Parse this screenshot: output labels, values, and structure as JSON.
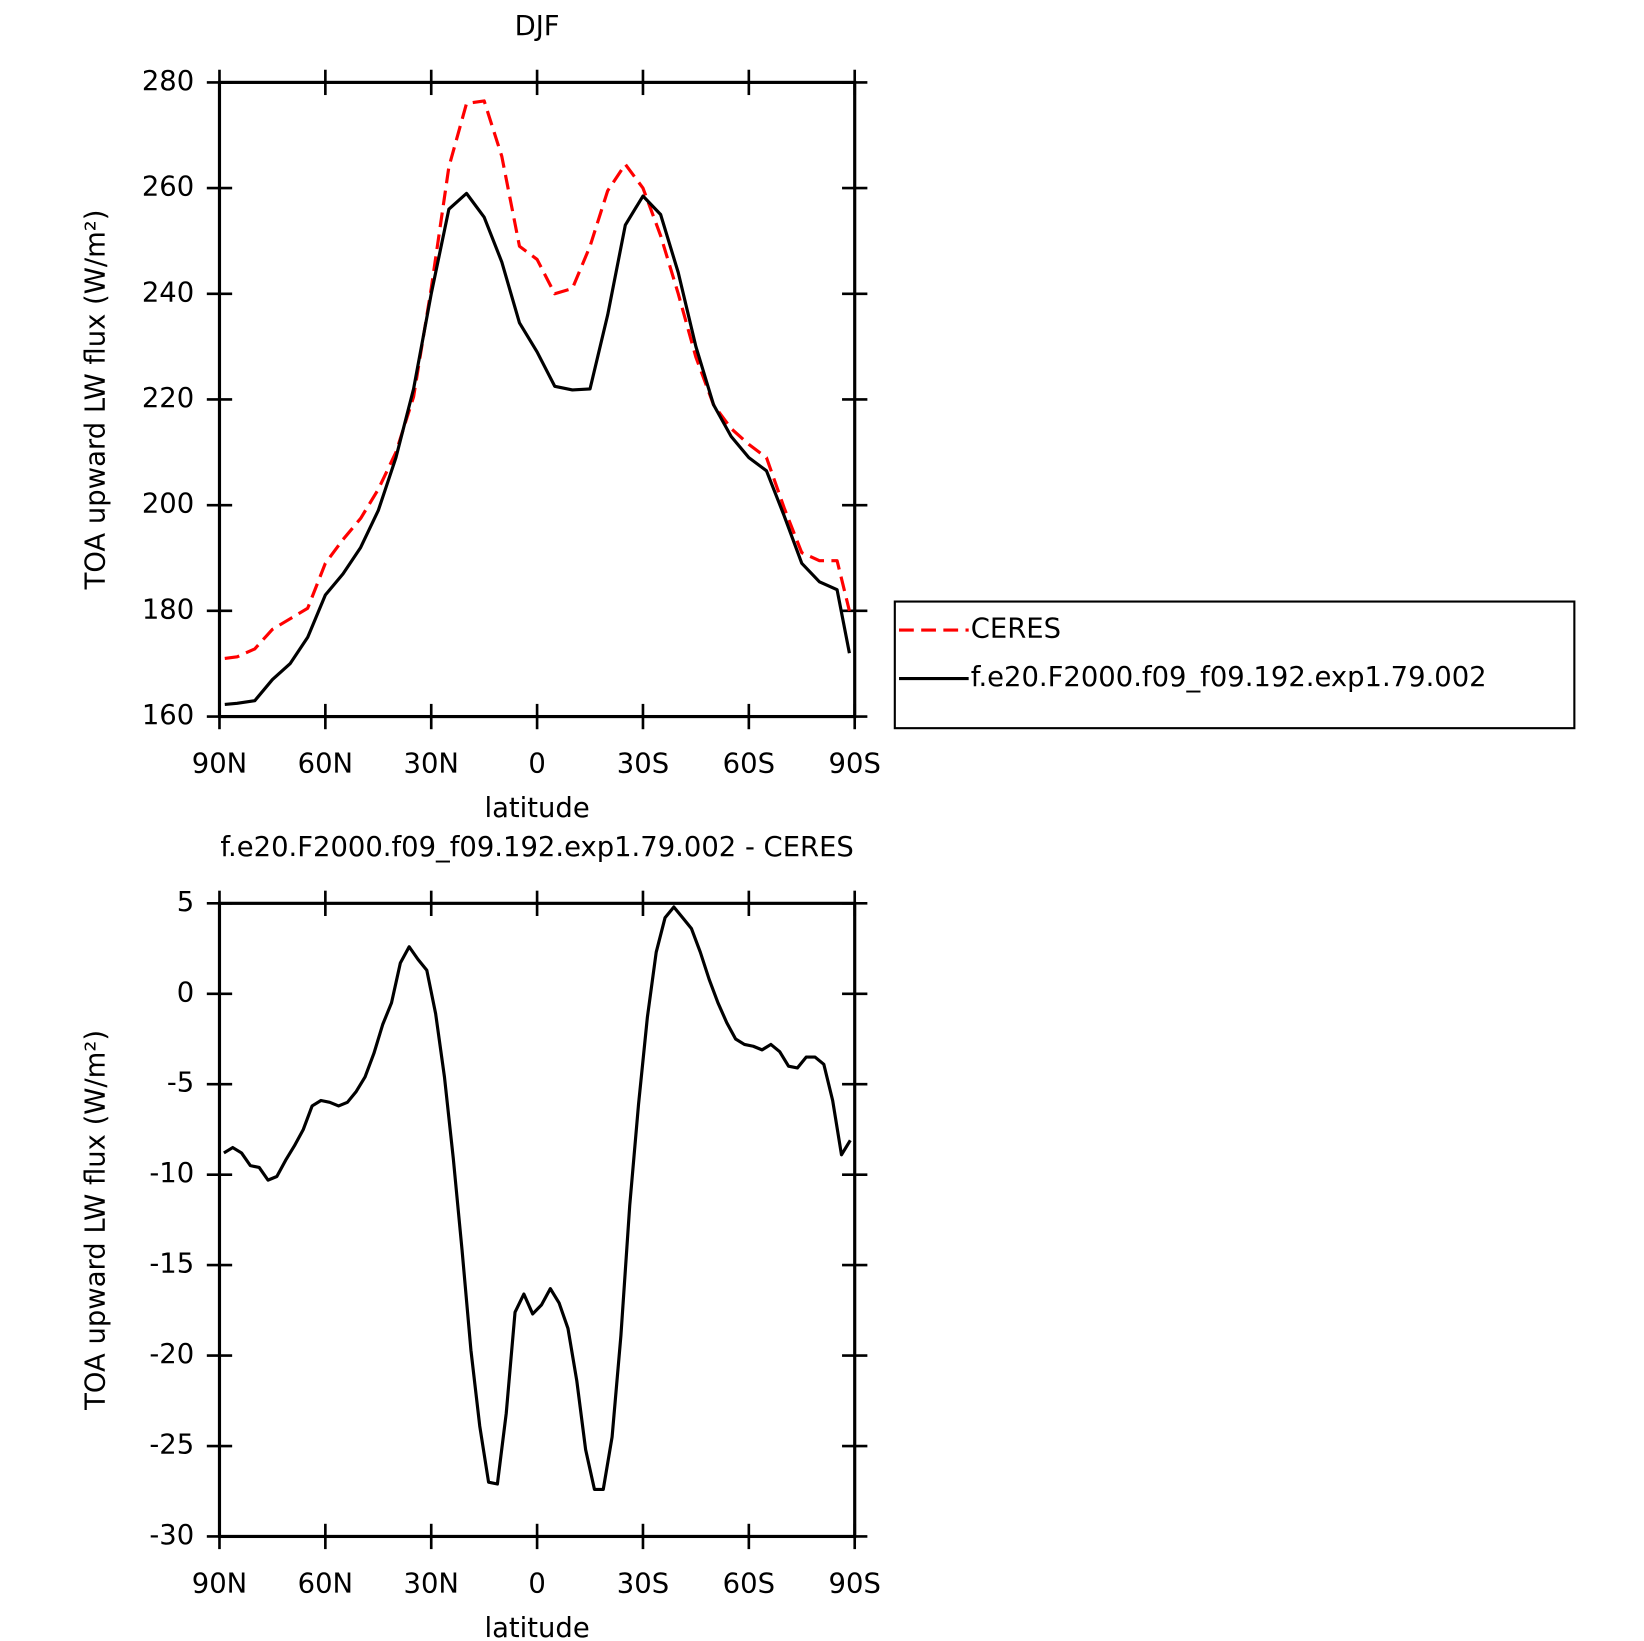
{
  "chart_data": [
    {
      "type": "line",
      "title": "DJF",
      "xlabel": "latitude",
      "ylabel": "TOA upward LW flux (W/m²)",
      "x": [
        88.5,
        85,
        80,
        75,
        70,
        65,
        60,
        55,
        50,
        45,
        40,
        35,
        30,
        25,
        20,
        15,
        10,
        5,
        0,
        -5,
        -10,
        -15,
        -20,
        -25,
        -30,
        -35,
        -40,
        -45,
        -50,
        -55,
        -60,
        -65,
        -70,
        -75,
        -80,
        -85,
        -88.5
      ],
      "xlim": [
        90,
        -90
      ],
      "xticks": [
        {
          "value": 90,
          "label": "90N"
        },
        {
          "value": 60,
          "label": "60N"
        },
        {
          "value": 30,
          "label": "30N"
        },
        0,
        {
          "value": -30,
          "label": "30S"
        },
        {
          "value": -60,
          "label": "60S"
        },
        {
          "value": -90,
          "label": "90S"
        }
      ],
      "ylim": [
        160,
        280
      ],
      "yticks": [
        160,
        180,
        200,
        220,
        240,
        260,
        280
      ],
      "legend": "right",
      "series": [
        {
          "name": "CERES",
          "color": "#ff0000",
          "linestyle": "dashed",
          "values": [
            171,
            171.3,
            172.8,
            176.5,
            178.5,
            180.5,
            189,
            193.5,
            197.5,
            203,
            210,
            220.5,
            241,
            264,
            276,
            276.5,
            266,
            249,
            246.5,
            240,
            241,
            249,
            259.5,
            264.5,
            260,
            251,
            240,
            228,
            219,
            214.5,
            211.5,
            209,
            199.5,
            191,
            189.5,
            189.5,
            180
          ]
        },
        {
          "name": "f.e20.F2000.f09_f09.192.exp1.79.002",
          "color": "#000000",
          "linestyle": "solid",
          "values": [
            162.3,
            162.5,
            163,
            167,
            170,
            175,
            183,
            187,
            192,
            199,
            209,
            222,
            240,
            256,
            259,
            254.5,
            246,
            234.5,
            229,
            222.5,
            221.8,
            222,
            236,
            253,
            258.5,
            255,
            244,
            230,
            219,
            213,
            209,
            206.5,
            198,
            189,
            185.5,
            184,
            172
          ]
        }
      ]
    },
    {
      "type": "line",
      "title": "f.e20.F2000.f09_f09.192.exp1.79.002 - CERES",
      "xlabel": "latitude",
      "ylabel": "TOA upward LW flux (W/m²)",
      "x": [
        88.75,
        86.25,
        83.75,
        81.25,
        78.75,
        76.25,
        73.75,
        71.25,
        68.75,
        66.25,
        63.75,
        61.25,
        58.75,
        56.25,
        53.75,
        51.25,
        48.75,
        46.25,
        43.75,
        41.25,
        38.75,
        36.25,
        33.75,
        31.25,
        28.75,
        26.25,
        23.75,
        21.25,
        18.75,
        16.25,
        13.75,
        11.25,
        8.75,
        6.25,
        3.75,
        1.25,
        -1.25,
        -3.75,
        -6.25,
        -8.75,
        -11.25,
        -13.75,
        -16.25,
        -18.75,
        -21.25,
        -23.75,
        -26.25,
        -28.75,
        -31.25,
        -33.75,
        -36.25,
        -38.75,
        -41.25,
        -43.75,
        -46.25,
        -48.75,
        -51.25,
        -53.75,
        -56.25,
        -58.75,
        -61.25,
        -63.75,
        -66.25,
        -68.75,
        -71.25,
        -73.75,
        -76.25,
        -78.75,
        -81.25,
        -83.75,
        -86.25,
        -88.75
      ],
      "xlim": [
        90,
        -90
      ],
      "xticks": [
        {
          "value": 90,
          "label": "90N"
        },
        {
          "value": 60,
          "label": "60N"
        },
        {
          "value": 30,
          "label": "30N"
        },
        0,
        {
          "value": -30,
          "label": "30S"
        },
        {
          "value": -60,
          "label": "60S"
        },
        {
          "value": -90,
          "label": "90S"
        }
      ],
      "ylim": [
        -30,
        5
      ],
      "yticks": [
        -30,
        -25,
        -20,
        -15,
        -10,
        -5,
        0,
        5
      ],
      "series": [
        {
          "color": "#000000",
          "linestyle": "solid",
          "values": [
            -8.8,
            -8.5,
            -8.8,
            -9.5,
            -9.6,
            -10.3,
            -10.1,
            -9.2,
            -8.4,
            -7.5,
            -6.2,
            -5.9,
            -6.0,
            -6.2,
            -6.0,
            -5.4,
            -4.6,
            -3.3,
            -1.7,
            -0.5,
            1.7,
            2.6,
            1.9,
            1.3,
            -1.1,
            -4.6,
            -9.1,
            -14.2,
            -19.7,
            -23.9,
            -27.0,
            -27.1,
            -23.2,
            -17.6,
            -16.6,
            -17.7,
            -17.2,
            -16.3,
            -17.1,
            -18.5,
            -21.4,
            -25.2,
            -27.4,
            -27.4,
            -24.5,
            -18.9,
            -11.7,
            -6.1,
            -1.3,
            2.3,
            4.2,
            4.8,
            4.2,
            3.6,
            2.3,
            0.8,
            -0.5,
            -1.6,
            -2.5,
            -2.8,
            -2.9,
            -3.1,
            -2.8,
            -3.2,
            -4.0,
            -4.1,
            -3.5,
            -3.5,
            -3.9,
            -5.9,
            -8.9,
            -8.1
          ]
        }
      ]
    }
  ]
}
